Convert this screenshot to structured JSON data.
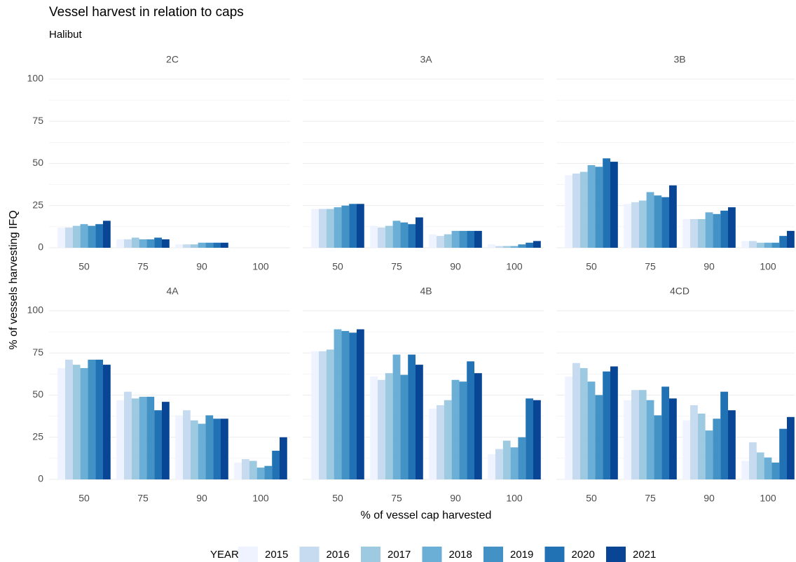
{
  "chart_data": {
    "type": "bar",
    "title": "Vessel harvest in relation to caps",
    "subtitle": "Halibut",
    "x_label": "% of vessel cap harvested",
    "y_label": "% of vessels harvesting IFQ",
    "legend_title": "YEAR",
    "categories": [
      "50",
      "75",
      "90",
      "100"
    ],
    "ylim": [
      0,
      100
    ],
    "yticks": [
      0,
      25,
      50,
      75,
      100
    ],
    "minor_yticks": [
      12.5,
      37.5,
      62.5,
      87.5
    ],
    "grid": true,
    "series": [
      {
        "name": "2015",
        "color": "#eff3ff"
      },
      {
        "name": "2016",
        "color": "#c6dbef"
      },
      {
        "name": "2017",
        "color": "#9ecae1"
      },
      {
        "name": "2018",
        "color": "#6baed6"
      },
      {
        "name": "2019",
        "color": "#4292c6"
      },
      {
        "name": "2020",
        "color": "#2171b5"
      },
      {
        "name": "2021",
        "color": "#084594"
      }
    ],
    "facets": [
      {
        "title": "2C",
        "values": [
          [
            12,
            5,
            2,
            0
          ],
          [
            12,
            5,
            2,
            0
          ],
          [
            13,
            6,
            2,
            0
          ],
          [
            14,
            5,
            3,
            0
          ],
          [
            13,
            5,
            3,
            0
          ],
          [
            14,
            6,
            3,
            0
          ],
          [
            16,
            5,
            3,
            0
          ]
        ]
      },
      {
        "title": "3A",
        "values": [
          [
            23,
            13,
            8,
            2
          ],
          [
            23,
            12,
            7,
            1
          ],
          [
            23,
            13,
            8,
            1
          ],
          [
            24,
            16,
            10,
            1
          ],
          [
            25,
            15,
            10,
            2
          ],
          [
            26,
            14,
            10,
            3
          ],
          [
            26,
            18,
            10,
            4
          ]
        ]
      },
      {
        "title": "3B",
        "values": [
          [
            43,
            26,
            17,
            4
          ],
          [
            44,
            27,
            17,
            4
          ],
          [
            45,
            28,
            17,
            3
          ],
          [
            49,
            33,
            21,
            3
          ],
          [
            48,
            31,
            20,
            3
          ],
          [
            53,
            30,
            22,
            7
          ],
          [
            51,
            37,
            24,
            10
          ]
        ]
      },
      {
        "title": "4A",
        "values": [
          [
            66,
            47,
            38,
            10
          ],
          [
            71,
            52,
            41,
            12
          ],
          [
            68,
            48,
            35,
            11
          ],
          [
            66,
            49,
            33,
            7
          ],
          [
            71,
            49,
            38,
            8
          ],
          [
            71,
            41,
            36,
            17
          ],
          [
            68,
            46,
            36,
            25
          ]
        ]
      },
      {
        "title": "4B",
        "values": [
          [
            76,
            61,
            42,
            15
          ],
          [
            76,
            59,
            44,
            18
          ],
          [
            77,
            63,
            47,
            23
          ],
          [
            89,
            74,
            59,
            19
          ],
          [
            88,
            62,
            58,
            25
          ],
          [
            87,
            74,
            70,
            48
          ],
          [
            89,
            68,
            63,
            47
          ]
        ]
      },
      {
        "title": "4CD",
        "values": [
          [
            61,
            47,
            35,
            11
          ],
          [
            69,
            53,
            44,
            22
          ],
          [
            66,
            53,
            39,
            16
          ],
          [
            58,
            47,
            29,
            13
          ],
          [
            50,
            38,
            36,
            10
          ],
          [
            64,
            55,
            52,
            30
          ],
          [
            67,
            48,
            41,
            37
          ]
        ]
      }
    ]
  }
}
